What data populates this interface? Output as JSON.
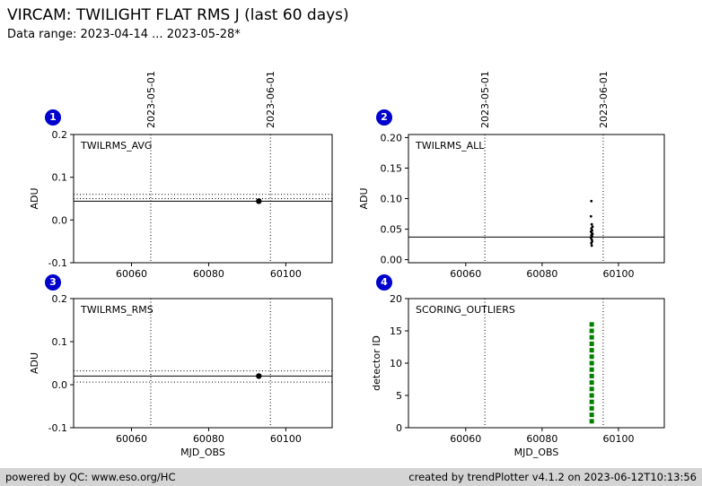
{
  "header": {
    "title": "VIRCAM: TWILIGHT FLAT RMS J (last 60 days)",
    "subtitle": "Data range: 2023-04-14 ... 2023-05-28*"
  },
  "footer": {
    "left": "powered by QC: www.eso.org/HC",
    "right": "created by trendPlotter v4.1.2 on 2023-06-12T10:13:56"
  },
  "colors": {
    "badge_bg": "#0000cc",
    "badge_text": "#ffffff",
    "axis": "#000000",
    "point": "#000000",
    "outlier_marker": "#007f00",
    "footer_bg": "#d4d4d4",
    "background": "#ffffff"
  },
  "date_markers": [
    {
      "mjd": 60065,
      "label": "2023-05-01"
    },
    {
      "mjd": 60096,
      "label": "2023-06-01"
    }
  ],
  "chart_data": [
    {
      "panel": 1,
      "badge": "1",
      "type": "scatter",
      "label": "TWILRMS_AVG",
      "ylabel": "ADU",
      "xlabel": "",
      "xlim": [
        60045,
        60112
      ],
      "ylim": [
        -0.1,
        0.2
      ],
      "xticks": [
        60060,
        60080,
        60100
      ],
      "yticks": [
        -0.1,
        0.0,
        0.1,
        0.2
      ],
      "ytick_labels": [
        "-0.1",
        "0.0",
        "0.1",
        "0.2"
      ],
      "ref_line": 0.044,
      "dotted_lines": [
        0.06,
        0.05
      ],
      "marker": "circle",
      "marker_color": "#000000",
      "show_top_dates": true,
      "grid": false,
      "points": [
        {
          "x": 60093,
          "y": 0.044
        }
      ]
    },
    {
      "panel": 2,
      "badge": "2",
      "type": "scatter",
      "label": "TWILRMS_ALL",
      "ylabel": "ADU",
      "xlabel": "",
      "xlim": [
        60045,
        60112
      ],
      "ylim": [
        -0.005,
        0.205
      ],
      "xticks": [
        60060,
        60080,
        60100
      ],
      "yticks": [
        0.0,
        0.05,
        0.1,
        0.15,
        0.2
      ],
      "ytick_labels": [
        "0.00",
        "0.05",
        "0.10",
        "0.15",
        "0.20"
      ],
      "ref_line": 0.037,
      "dotted_lines": [],
      "marker": "dot",
      "marker_color": "#000000",
      "show_top_dates": true,
      "grid": false,
      "points": [
        {
          "x": 60092.9,
          "y": 0.096
        },
        {
          "x": 60092.8,
          "y": 0.071
        },
        {
          "x": 60093.0,
          "y": 0.058
        },
        {
          "x": 60093.2,
          "y": 0.054
        },
        {
          "x": 60092.9,
          "y": 0.051
        },
        {
          "x": 60093.1,
          "y": 0.048
        },
        {
          "x": 60092.8,
          "y": 0.046
        },
        {
          "x": 60093.0,
          "y": 0.044
        },
        {
          "x": 60093.2,
          "y": 0.042
        },
        {
          "x": 60092.9,
          "y": 0.04
        },
        {
          "x": 60093.1,
          "y": 0.038
        },
        {
          "x": 60092.8,
          "y": 0.036
        },
        {
          "x": 60093.0,
          "y": 0.033
        },
        {
          "x": 60093.1,
          "y": 0.03
        },
        {
          "x": 60092.9,
          "y": 0.027
        },
        {
          "x": 60093.0,
          "y": 0.023
        }
      ]
    },
    {
      "panel": 3,
      "badge": "3",
      "type": "scatter",
      "label": "TWILRMS_RMS",
      "ylabel": "ADU",
      "xlabel": "MJD_OBS",
      "xlim": [
        60045,
        60112
      ],
      "ylim": [
        -0.1,
        0.2
      ],
      "xticks": [
        60060,
        60080,
        60100
      ],
      "yticks": [
        -0.1,
        0.0,
        0.1,
        0.2
      ],
      "ytick_labels": [
        "-0.1",
        "0.0",
        "0.1",
        "0.2"
      ],
      "ref_line": 0.02,
      "dotted_lines": [
        0.032,
        0.006
      ],
      "marker": "circle",
      "marker_color": "#000000",
      "show_top_dates": false,
      "grid": false,
      "points": [
        {
          "x": 60093,
          "y": 0.02
        }
      ]
    },
    {
      "panel": 4,
      "badge": "4",
      "type": "scatter",
      "label": "SCORING_OUTLIERS",
      "ylabel": "detector ID",
      "xlabel": "MJD_OBS",
      "xlim": [
        60045,
        60112
      ],
      "ylim": [
        0,
        20
      ],
      "xticks": [
        60060,
        60080,
        60100
      ],
      "yticks": [
        0,
        5,
        10,
        15,
        20
      ],
      "ytick_labels": [
        "0",
        "5",
        "10",
        "15",
        "20"
      ],
      "ref_line": null,
      "dotted_lines": [],
      "marker": "square",
      "marker_color": "#007f00",
      "show_top_dates": false,
      "grid": false,
      "points": [
        {
          "x": 60093,
          "y": 1
        },
        {
          "x": 60093,
          "y": 2
        },
        {
          "x": 60093,
          "y": 3
        },
        {
          "x": 60093,
          "y": 4
        },
        {
          "x": 60093,
          "y": 5
        },
        {
          "x": 60093,
          "y": 6
        },
        {
          "x": 60093,
          "y": 7
        },
        {
          "x": 60093,
          "y": 8
        },
        {
          "x": 60093,
          "y": 9
        },
        {
          "x": 60093,
          "y": 10
        },
        {
          "x": 60093,
          "y": 11
        },
        {
          "x": 60093,
          "y": 12
        },
        {
          "x": 60093,
          "y": 13
        },
        {
          "x": 60093,
          "y": 14
        },
        {
          "x": 60093,
          "y": 15
        },
        {
          "x": 60093,
          "y": 16
        }
      ]
    }
  ]
}
